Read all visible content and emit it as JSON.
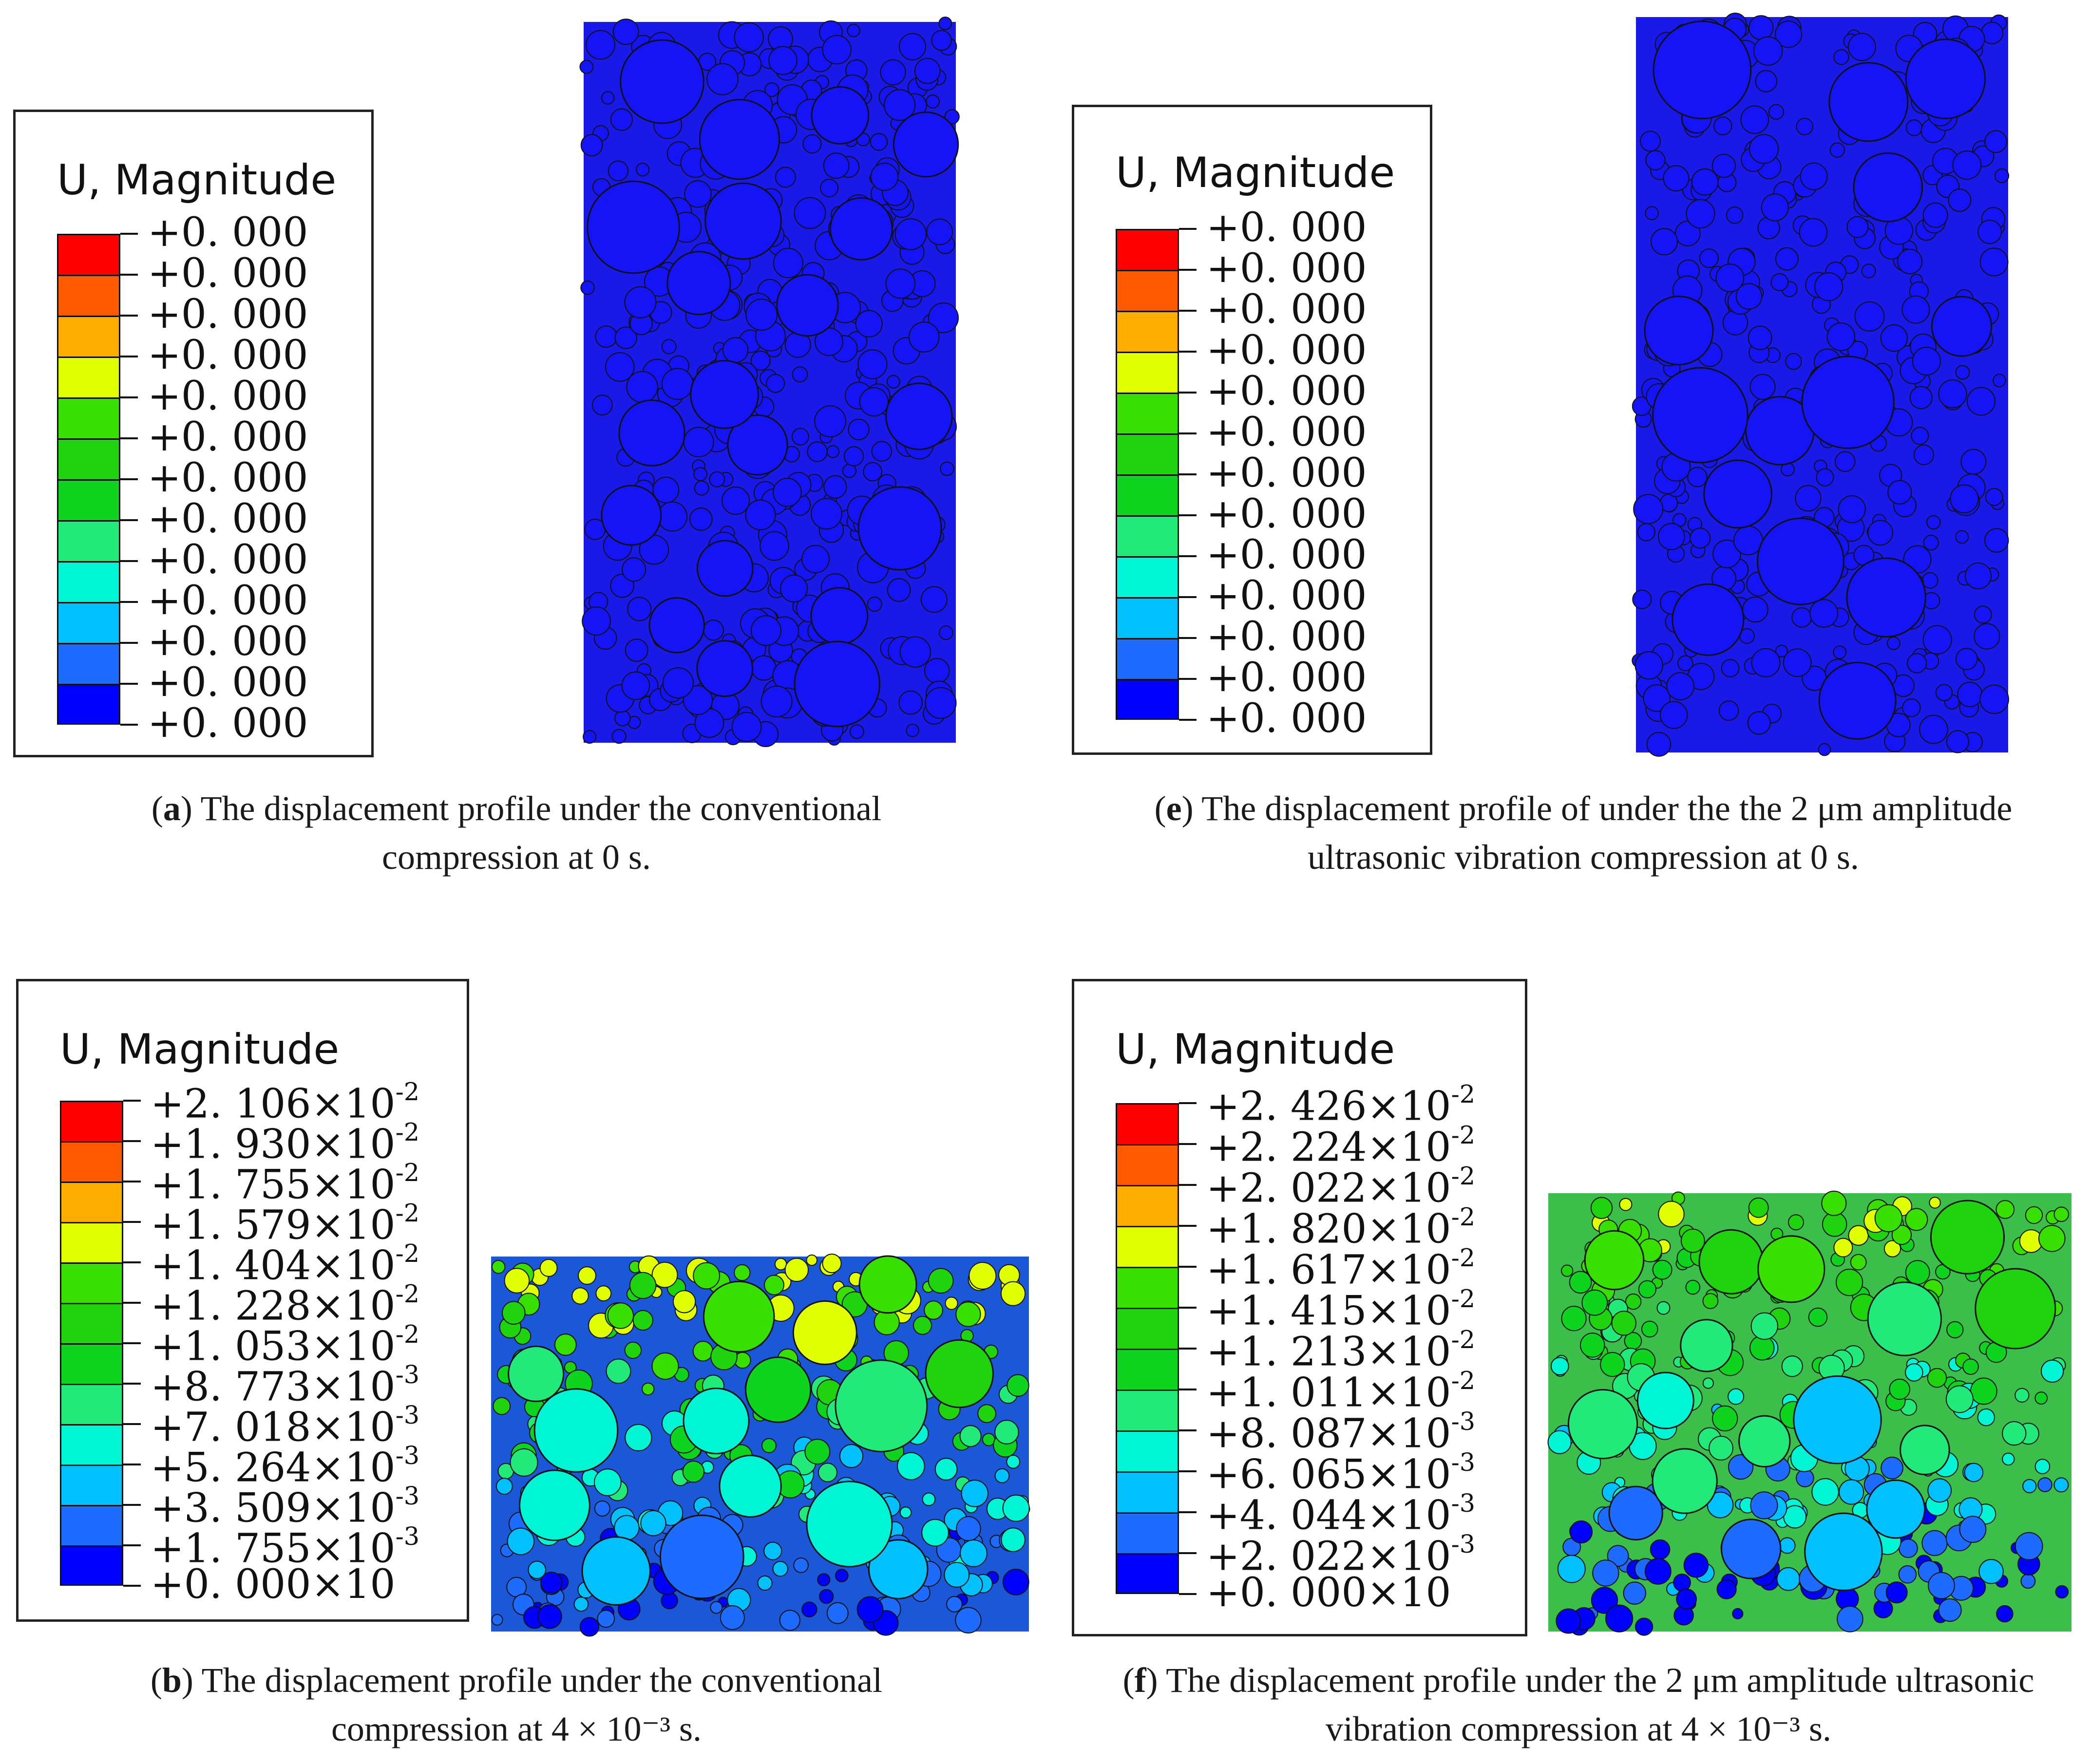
{
  "figure": {
    "colormap": [
      "#ff0000",
      "#ff5a00",
      "#ffad00",
      "#e0ff00",
      "#38e000",
      "#1fd40f",
      "#0fd41f",
      "#22ea7a",
      "#00f5d5",
      "#00c0ff",
      "#1d6cff",
      "#0000ff"
    ],
    "panels": [
      {
        "id": "a",
        "legend_title": "U, Magnitude",
        "ticks": [
          {
            "v": "+0. 000",
            "e": ""
          },
          {
            "v": "+0. 000",
            "e": ""
          },
          {
            "v": "+0. 000",
            "e": ""
          },
          {
            "v": "+0. 000",
            "e": ""
          },
          {
            "v": "+0. 000",
            "e": ""
          },
          {
            "v": "+0. 000",
            "e": ""
          },
          {
            "v": "+0. 000",
            "e": ""
          },
          {
            "v": "+0. 000",
            "e": ""
          },
          {
            "v": "+0. 000",
            "e": ""
          },
          {
            "v": "+0. 000",
            "e": ""
          },
          {
            "v": "+0. 000",
            "e": ""
          },
          {
            "v": "+0. 000",
            "e": ""
          },
          {
            "v": "+0. 000",
            "e": ""
          }
        ],
        "caption_letter": "a",
        "caption_text": "The displacement profile under the conventional compression at 0 s."
      },
      {
        "id": "e",
        "legend_title": "U, Magnitude",
        "ticks": [
          {
            "v": "+0. 000",
            "e": ""
          },
          {
            "v": "+0. 000",
            "e": ""
          },
          {
            "v": "+0. 000",
            "e": ""
          },
          {
            "v": "+0. 000",
            "e": ""
          },
          {
            "v": "+0. 000",
            "e": ""
          },
          {
            "v": "+0. 000",
            "e": ""
          },
          {
            "v": "+0. 000",
            "e": ""
          },
          {
            "v": "+0. 000",
            "e": ""
          },
          {
            "v": "+0. 000",
            "e": ""
          },
          {
            "v": "+0. 000",
            "e": ""
          },
          {
            "v": "+0. 000",
            "e": ""
          },
          {
            "v": "+0. 000",
            "e": ""
          },
          {
            "v": "+0. 000",
            "e": ""
          }
        ],
        "caption_letter": "e",
        "caption_text": "The displacement profile of under the the 2 μm amplitude ultrasonic vibration compression at 0 s."
      },
      {
        "id": "b",
        "legend_title": "U, Magnitude",
        "ticks": [
          {
            "v": "+2. 106×10",
            "e": "-2"
          },
          {
            "v": "+1. 930×10",
            "e": "-2"
          },
          {
            "v": "+1. 755×10",
            "e": "-2"
          },
          {
            "v": "+1. 579×10",
            "e": "-2"
          },
          {
            "v": "+1. 404×10",
            "e": "-2"
          },
          {
            "v": "+1. 228×10",
            "e": "-2"
          },
          {
            "v": "+1. 053×10",
            "e": "-2"
          },
          {
            "v": "+8. 773×10",
            "e": "-3"
          },
          {
            "v": "+7. 018×10",
            "e": "-3"
          },
          {
            "v": "+5. 264×10",
            "e": "-3"
          },
          {
            "v": "+3. 509×10",
            "e": "-3"
          },
          {
            "v": "+1. 755×10",
            "e": "-3"
          },
          {
            "v": "+0. 000×10",
            "e": ""
          }
        ],
        "caption_letter": "b",
        "caption_text": "The displacement profile under the conventional compression at 4 × 10⁻³ s."
      },
      {
        "id": "f",
        "legend_title": "U, Magnitude",
        "ticks": [
          {
            "v": "+2. 426×10",
            "e": "-2"
          },
          {
            "v": "+2. 224×10",
            "e": "-2"
          },
          {
            "v": "+2. 022×10",
            "e": "-2"
          },
          {
            "v": "+1. 820×10",
            "e": "-2"
          },
          {
            "v": "+1. 617×10",
            "e": "-2"
          },
          {
            "v": "+1. 415×10",
            "e": "-2"
          },
          {
            "v": "+1. 213×10",
            "e": "-2"
          },
          {
            "v": "+1. 011×10",
            "e": "-2"
          },
          {
            "v": "+8. 087×10",
            "e": "-3"
          },
          {
            "v": "+6. 065×10",
            "e": "-3"
          },
          {
            "v": "+4. 044×10",
            "e": "-3"
          },
          {
            "v": "+2. 022×10",
            "e": "-3"
          },
          {
            "v": "+0. 000×10",
            "e": ""
          }
        ],
        "caption_letter": "f",
        "caption_text": "The displacement profile under the 2 μm amplitude ultrasonic vibration compression at 4 × 10⁻³ s."
      }
    ]
  }
}
